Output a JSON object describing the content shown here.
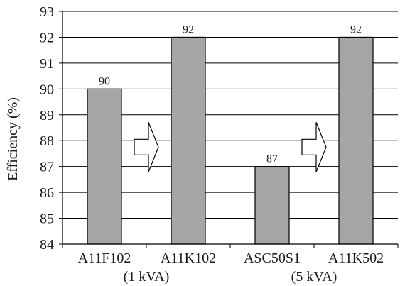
{
  "chart_data": {
    "type": "bar",
    "categories": [
      "A11F102",
      "A11K102",
      "ASC50S1",
      "A11K502"
    ],
    "values": [
      90,
      92,
      87,
      92
    ],
    "data_labels": [
      "90",
      "92",
      "87",
      "92"
    ],
    "title": "",
    "xlabel": "",
    "ylabel": "Efficiency (%)",
    "ylim": [
      84,
      93
    ],
    "yticks": [
      "84",
      "85",
      "86",
      "87",
      "88",
      "89",
      "90",
      "91",
      "92",
      "93"
    ],
    "group_labels": [
      "(1 kVA)",
      "(5 kVA)"
    ],
    "annotations": [
      "arrow A11F102 → A11K102",
      "arrow ASC50S1 → A11K502"
    ],
    "grid": true,
    "colors": {
      "bar": "#a6a6a6",
      "bar_edge": "#000000",
      "grid": "#000000",
      "arrow_fill": "#ffffff"
    }
  }
}
